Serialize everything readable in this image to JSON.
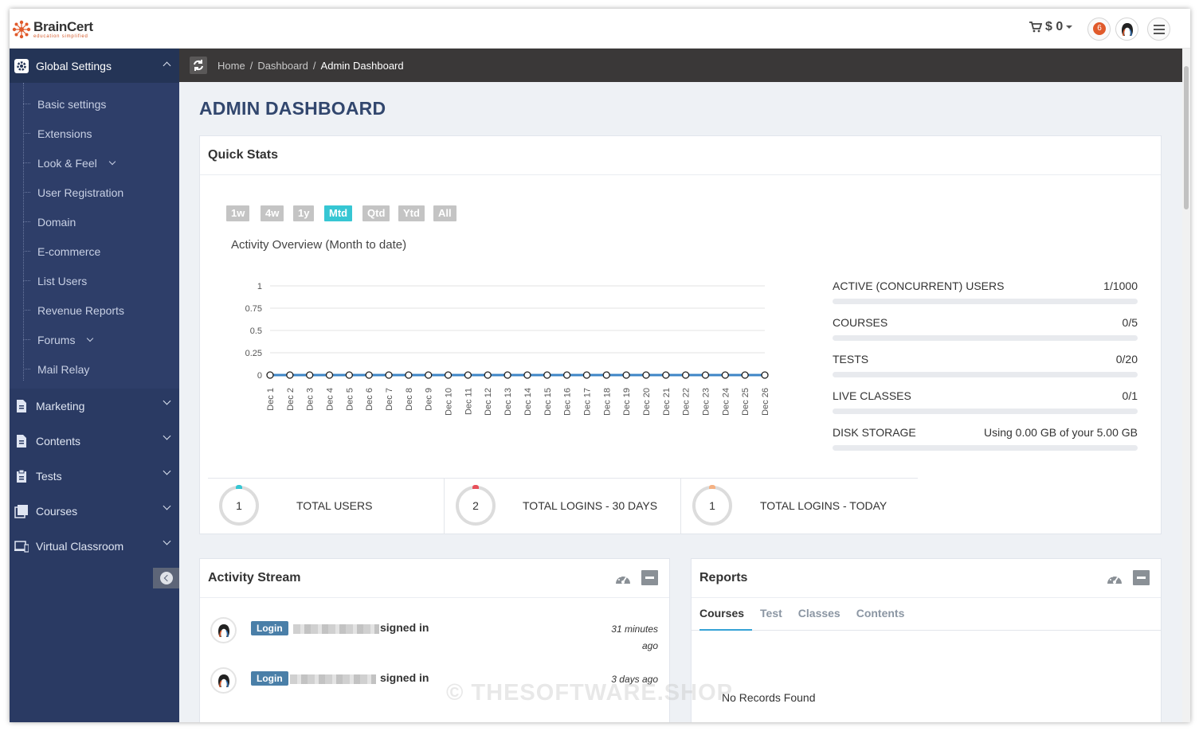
{
  "brand": {
    "name": "BrainCert",
    "tagline": "education simplified",
    "accent": "#e05a2b"
  },
  "header": {
    "cart_value": "$ 0",
    "notification_count": "6"
  },
  "sidebar": {
    "global_settings": {
      "label": "Global Settings",
      "items": [
        {
          "label": "Basic settings"
        },
        {
          "label": "Extensions"
        },
        {
          "label": "Look & Feel"
        },
        {
          "label": "User Registration"
        },
        {
          "label": "Domain"
        },
        {
          "label": "E-commerce"
        },
        {
          "label": "List Users"
        },
        {
          "label": "Revenue Reports"
        },
        {
          "label": "Forums"
        },
        {
          "label": "Mail Relay"
        }
      ]
    },
    "sections": [
      {
        "label": "Marketing"
      },
      {
        "label": "Contents"
      },
      {
        "label": "Tests"
      },
      {
        "label": "Courses"
      },
      {
        "label": "Virtual Classroom"
      }
    ]
  },
  "breadcrumb": {
    "home": "Home",
    "dashboard": "Dashboard",
    "current": "Admin Dashboard"
  },
  "page": {
    "title": "ADMIN DASHBOARD"
  },
  "quick_stats": {
    "title": "Quick Stats",
    "ranges": [
      "1w",
      "4w",
      "1y",
      "Mtd",
      "Qtd",
      "Ytd",
      "All"
    ],
    "active_range": "Mtd",
    "chart_title": "Activity Overview (Month to date)",
    "usage": [
      {
        "label": "ACTIVE (CONCURRENT) USERS",
        "value": "1/1000",
        "fraction": 0.001
      },
      {
        "label": "COURSES",
        "value": "0/5",
        "fraction": 0
      },
      {
        "label": "TESTS",
        "value": "0/20",
        "fraction": 0
      },
      {
        "label": "LIVE CLASSES",
        "value": "0/1",
        "fraction": 0
      },
      {
        "label": "DISK STORAGE",
        "value": "Using 0.00 GB of your 5.00 GB",
        "fraction": 0
      }
    ],
    "totals": [
      {
        "value": "1",
        "label": "TOTAL USERS",
        "color": "#36c6d3"
      },
      {
        "value": "2",
        "label": "TOTAL LOGINS - 30 DAYS",
        "color": "#e7505a"
      },
      {
        "value": "1",
        "label": "TOTAL LOGINS - TODAY",
        "color": "#f4b183"
      }
    ]
  },
  "chart_data": {
    "type": "line",
    "title": "Activity Overview (Month to date)",
    "categories": [
      "Dec 1",
      "Dec 2",
      "Dec 3",
      "Dec 4",
      "Dec 5",
      "Dec 6",
      "Dec 7",
      "Dec 8",
      "Dec 9",
      "Dec 10",
      "Dec 11",
      "Dec 12",
      "Dec 13",
      "Dec 14",
      "Dec 15",
      "Dec 16",
      "Dec 17",
      "Dec 18",
      "Dec 19",
      "Dec 20",
      "Dec 21",
      "Dec 22",
      "Dec 23",
      "Dec 24",
      "Dec 25",
      "Dec 26"
    ],
    "series": [
      {
        "values": [
          0,
          0,
          0,
          0,
          0,
          0,
          0,
          0,
          0,
          0,
          0,
          0,
          0,
          0,
          0,
          0,
          0,
          0,
          0,
          0,
          0,
          0,
          0,
          0,
          0,
          0
        ],
        "color": "#3d85c6"
      }
    ],
    "yticks": [
      "1",
      "0.75",
      "0.5",
      "0.25",
      "0"
    ],
    "ylim": [
      0,
      1
    ],
    "grid": true
  },
  "activity_stream": {
    "title": "Activity Stream",
    "items": [
      {
        "badge": "Login",
        "text": "signed in",
        "time": "31 minutes ago"
      },
      {
        "badge": "Login",
        "text": "signed in",
        "time": "3 days ago"
      }
    ]
  },
  "reports": {
    "title": "Reports",
    "tabs": [
      "Courses",
      "Test",
      "Classes",
      "Contents"
    ],
    "empty_text": "No Records Found"
  },
  "watermark": "© THESOFTWARE.SHOP"
}
